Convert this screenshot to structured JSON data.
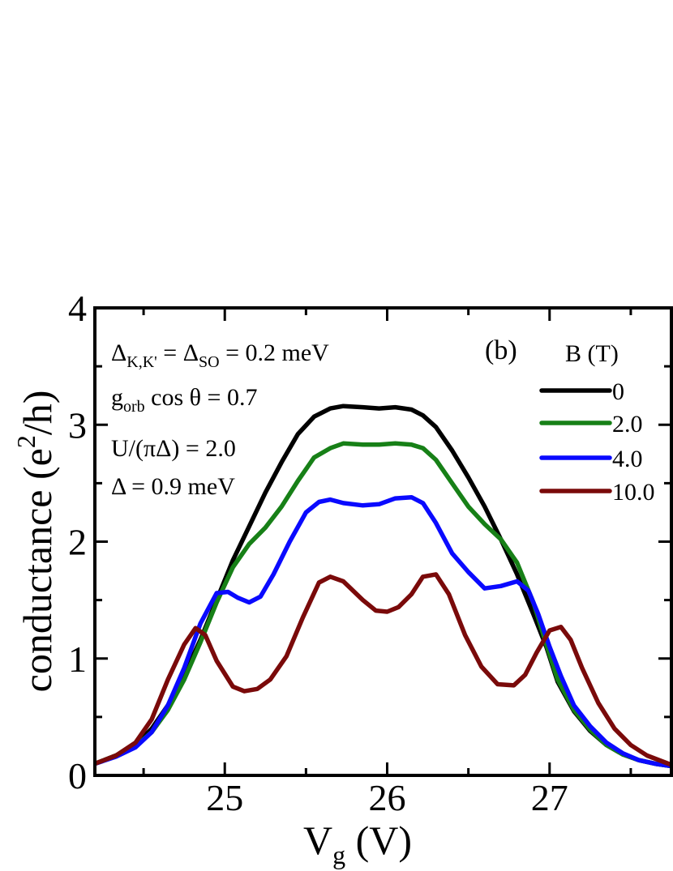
{
  "chart_data": {
    "type": "line",
    "xlabel_main": "V",
    "xlabel_sub": "g",
    "xlabel_unit": " (V)",
    "ylabel_main": "conductance (e",
    "ylabel_sup": "2",
    "ylabel_end": "/h)",
    "xlim": [
      24.2,
      27.75
    ],
    "ylim": [
      0,
      4
    ],
    "xticks": [
      {
        "value": 25,
        "label": "25"
      },
      {
        "value": 26,
        "label": "26"
      },
      {
        "value": 27,
        "label": "27"
      }
    ],
    "yticks": [
      {
        "value": 0,
        "label": "0"
      },
      {
        "value": 1,
        "label": "1"
      },
      {
        "value": 2,
        "label": "2"
      },
      {
        "value": 3,
        "label": "3"
      },
      {
        "value": 4,
        "label": "4"
      }
    ],
    "panel_label": "(b)",
    "legend_title": "B (T)",
    "legend_position": "upper-right",
    "annotations": [
      {
        "id": "delta_kk",
        "parts": [
          [
            "Δ",
            ""
          ],
          [
            "K,K'",
            "sub"
          ],
          [
            " = Δ",
            ""
          ],
          [
            "SO",
            "sub"
          ],
          [
            " = 0.2 meV",
            ""
          ]
        ]
      },
      {
        "id": "gorb",
        "parts": [
          [
            "g",
            ""
          ],
          [
            "orb",
            "sub"
          ],
          [
            " cos θ = 0.7",
            ""
          ]
        ]
      },
      {
        "id": "u",
        "parts": [
          [
            "U/(πΔ) = 2.0",
            ""
          ]
        ]
      },
      {
        "id": "delta",
        "parts": [
          [
            "Δ = 0.9 meV",
            ""
          ]
        ]
      }
    ],
    "series": [
      {
        "name": "0",
        "color": "#000000",
        "x": [
          24.2,
          24.33,
          24.45,
          24.55,
          24.65,
          24.75,
          24.85,
          24.95,
          25.05,
          25.15,
          25.25,
          25.35,
          25.45,
          25.55,
          25.65,
          25.73,
          25.85,
          25.95,
          26.05,
          26.15,
          26.22,
          26.3,
          26.4,
          26.5,
          26.6,
          26.7,
          26.8,
          26.9,
          26.98,
          27.05,
          27.15,
          27.25,
          27.35,
          27.45,
          27.55,
          27.65,
          27.75
        ],
        "y": [
          0.1,
          0.17,
          0.26,
          0.4,
          0.6,
          0.86,
          1.16,
          1.5,
          1.84,
          2.13,
          2.42,
          2.68,
          2.92,
          3.07,
          3.14,
          3.16,
          3.15,
          3.14,
          3.15,
          3.13,
          3.08,
          2.98,
          2.78,
          2.55,
          2.3,
          2.02,
          1.72,
          1.38,
          1.1,
          0.8,
          0.55,
          0.38,
          0.26,
          0.18,
          0.13,
          0.1,
          0.08
        ]
      },
      {
        "name": "2.0",
        "color": "#178017",
        "x": [
          24.2,
          24.33,
          24.45,
          24.55,
          24.65,
          24.75,
          24.85,
          24.95,
          25.05,
          25.15,
          25.25,
          25.35,
          25.45,
          25.55,
          25.65,
          25.73,
          25.85,
          25.95,
          26.05,
          26.15,
          26.22,
          26.3,
          26.4,
          26.5,
          26.6,
          26.7,
          26.8,
          26.9,
          26.98,
          27.05,
          27.15,
          27.25,
          27.35,
          27.45,
          27.55,
          27.65,
          27.75
        ],
        "y": [
          0.1,
          0.17,
          0.25,
          0.37,
          0.56,
          0.82,
          1.14,
          1.48,
          1.78,
          1.98,
          2.12,
          2.3,
          2.52,
          2.72,
          2.8,
          2.84,
          2.83,
          2.83,
          2.84,
          2.83,
          2.8,
          2.7,
          2.5,
          2.3,
          2.15,
          2.02,
          1.82,
          1.48,
          1.12,
          0.82,
          0.56,
          0.39,
          0.26,
          0.18,
          0.13,
          0.1,
          0.08
        ]
      },
      {
        "name": "4.0",
        "color": "#0a0aff",
        "x": [
          24.2,
          24.33,
          24.45,
          24.55,
          24.65,
          24.75,
          24.85,
          24.95,
          25.02,
          25.08,
          25.15,
          25.22,
          25.3,
          25.4,
          25.5,
          25.58,
          25.65,
          25.73,
          25.85,
          25.95,
          26.05,
          26.15,
          26.22,
          26.3,
          26.4,
          26.5,
          26.6,
          26.7,
          26.8,
          26.87,
          26.93,
          27.0,
          27.07,
          27.15,
          27.25,
          27.35,
          27.45,
          27.55,
          27.65,
          27.75
        ],
        "y": [
          0.1,
          0.16,
          0.24,
          0.37,
          0.6,
          0.92,
          1.3,
          1.56,
          1.57,
          1.52,
          1.48,
          1.53,
          1.72,
          2.0,
          2.25,
          2.34,
          2.36,
          2.33,
          2.31,
          2.32,
          2.37,
          2.38,
          2.33,
          2.16,
          1.9,
          1.74,
          1.6,
          1.62,
          1.66,
          1.58,
          1.38,
          1.1,
          0.85,
          0.6,
          0.42,
          0.28,
          0.19,
          0.13,
          0.1,
          0.08
        ]
      },
      {
        "name": "10.0",
        "color": "#7a0a0a",
        "x": [
          24.2,
          24.33,
          24.45,
          24.55,
          24.65,
          24.75,
          24.82,
          24.88,
          24.95,
          25.05,
          25.12,
          25.2,
          25.28,
          25.38,
          25.48,
          25.58,
          25.65,
          25.73,
          25.85,
          25.93,
          26.0,
          26.07,
          26.15,
          26.22,
          26.3,
          26.38,
          26.48,
          26.58,
          26.68,
          26.78,
          26.85,
          26.92,
          27.0,
          27.07,
          27.13,
          27.2,
          27.3,
          27.4,
          27.5,
          27.6,
          27.75
        ],
        "y": [
          0.1,
          0.17,
          0.28,
          0.48,
          0.82,
          1.12,
          1.26,
          1.2,
          0.98,
          0.76,
          0.72,
          0.74,
          0.82,
          1.02,
          1.35,
          1.65,
          1.7,
          1.66,
          1.5,
          1.41,
          1.4,
          1.44,
          1.55,
          1.7,
          1.72,
          1.55,
          1.2,
          0.93,
          0.78,
          0.77,
          0.86,
          1.05,
          1.24,
          1.27,
          1.16,
          0.92,
          0.62,
          0.4,
          0.26,
          0.17,
          0.09
        ]
      }
    ]
  }
}
